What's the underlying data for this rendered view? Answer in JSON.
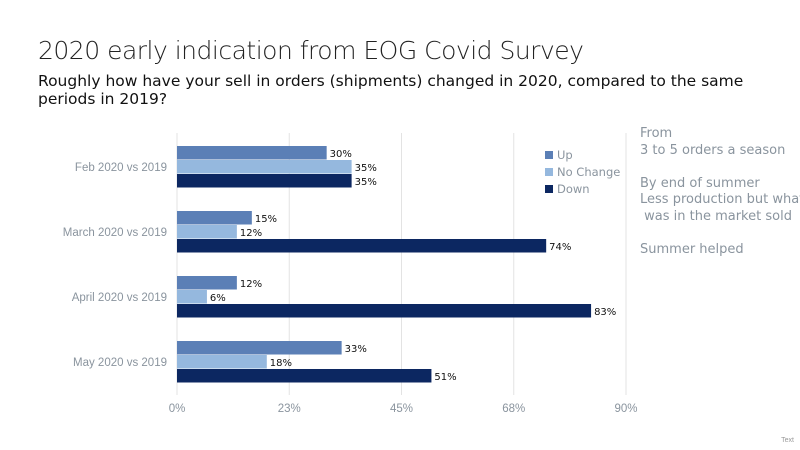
{
  "title": "2020 early indication from EOG Covid Survey",
  "subtitle": "Roughly how have your sell in orders (shipments) changed in 2020, compared to the same periods in 2019?",
  "notes": [
    "From",
    "3 to 5 orders a season",
    "",
    "By end of summer",
    "Less production but what",
    " was in the market sold",
    "",
    "Summer helped"
  ],
  "footer": "Text",
  "chart_data": {
    "type": "bar",
    "orientation": "horizontal",
    "categories": [
      "Feb 2020 vs 2019",
      "March 2020 vs 2019",
      "April 2020 vs 2019",
      "May 2020 vs 2019"
    ],
    "series": [
      {
        "name": "Up",
        "color": "#5b7fb6",
        "values": [
          30,
          15,
          12,
          33
        ]
      },
      {
        "name": "No Change",
        "color": "#95b8de",
        "values": [
          35,
          12,
          6,
          18
        ]
      },
      {
        "name": "Down",
        "color": "#0c2761",
        "values": [
          35,
          74,
          83,
          51
        ]
      }
    ],
    "data_labels": [
      [
        "30%",
        "35%",
        "35%"
      ],
      [
        "15%",
        "12%",
        "74%"
      ],
      [
        "12%",
        "6%",
        "83%"
      ],
      [
        "33%",
        "18%",
        "51%"
      ]
    ],
    "xticks": [
      "0%",
      "23%",
      "45%",
      "68%",
      "90%"
    ],
    "xlim": [
      0,
      90
    ],
    "grid": true,
    "legend": "top-right"
  }
}
